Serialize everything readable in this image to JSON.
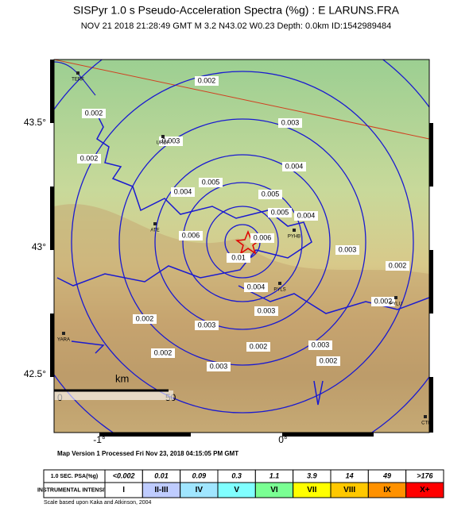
{
  "header": {
    "title": "SISPyr 1.0 s Pseudo-Acceleration Spectra (%g) : E LARUNS.FRA",
    "subtitle": "NOV 21 2018 21:28:49  GMT   M 3.2   N43.02 W0.23   Depth: 0.0km   ID:1542989484"
  },
  "map": {
    "lat_labels": [
      "43.5°",
      "43°",
      "42.5°"
    ],
    "lon_labels": [
      "-1°",
      "0°"
    ],
    "stations": [
      "TERF",
      "URDF",
      "ATE",
      "PYHB",
      "PYLS",
      "PYLU",
      "YARA",
      "CTI"
    ],
    "contour_labels": [
      "0.002",
      "0.002",
      "0.003",
      "0.002",
      "0.003",
      "0.004",
      "0.004",
      "0.005",
      "0.005",
      "0.006",
      "0.006",
      "0.01",
      "0.004",
      "0.005",
      "0.004",
      "0.003",
      "0.003",
      "0.002",
      "0.002",
      "0.003",
      "0.002",
      "0.003",
      "0.002",
      "0.002",
      "0.002",
      "0.003"
    ],
    "scale": {
      "unit": "km",
      "start": "0",
      "end": "50"
    }
  },
  "footer": "Map Version 1 Processed Fri Nov 23, 2018 04:15:05 PM GMT",
  "legend": {
    "psa_label": "1.0 SEC. PSA(%g)",
    "psa": [
      "<0.002",
      "0.01",
      "0.09",
      "0.3",
      "1.1",
      "3.9",
      "14",
      "49",
      ">176"
    ],
    "intensity_label": "INSTRUMENTAL INTENSITY",
    "intensity": [
      "I",
      "II-III",
      "IV",
      "V",
      "VI",
      "VII",
      "VIII",
      "IX",
      "X+"
    ],
    "note": "Scale based upon Kaka and Atkinson, 2004"
  }
}
